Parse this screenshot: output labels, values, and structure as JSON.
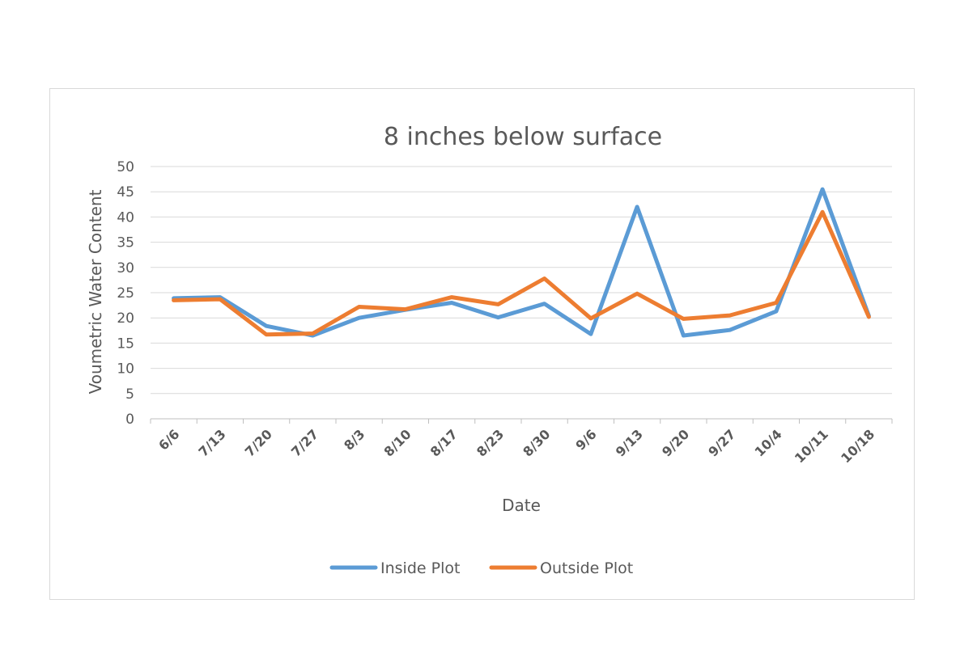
{
  "chart_data": {
    "type": "line",
    "title": "8 inches below surface",
    "xlabel": "Date",
    "ylabel": "Voumetric Water Content",
    "categories": [
      "6/6",
      "7/13",
      "7/20",
      "7/27",
      "8/3",
      "8/10",
      "8/17",
      "8/23",
      "8/30",
      "9/6",
      "9/13",
      "9/20",
      "9/27",
      "10/4",
      "10/11",
      "10/18"
    ],
    "ylim": [
      0,
      50
    ],
    "yticks": [
      0,
      5,
      10,
      15,
      20,
      25,
      30,
      35,
      40,
      45,
      50
    ],
    "grid": true,
    "legend_position": "bottom",
    "series": [
      {
        "name": "Inside Plot",
        "color": "#5b9bd5",
        "values": [
          23.9,
          24.1,
          18.4,
          16.5,
          20.0,
          21.6,
          23.0,
          20.1,
          22.8,
          16.8,
          42.0,
          16.5,
          17.6,
          21.3,
          45.5,
          20.4
        ]
      },
      {
        "name": "Outside Plot",
        "color": "#ed7d31",
        "values": [
          23.5,
          23.7,
          16.7,
          16.9,
          22.2,
          21.7,
          24.1,
          22.7,
          27.8,
          19.9,
          24.8,
          19.8,
          20.5,
          23.0,
          41.0,
          20.2
        ]
      }
    ]
  }
}
